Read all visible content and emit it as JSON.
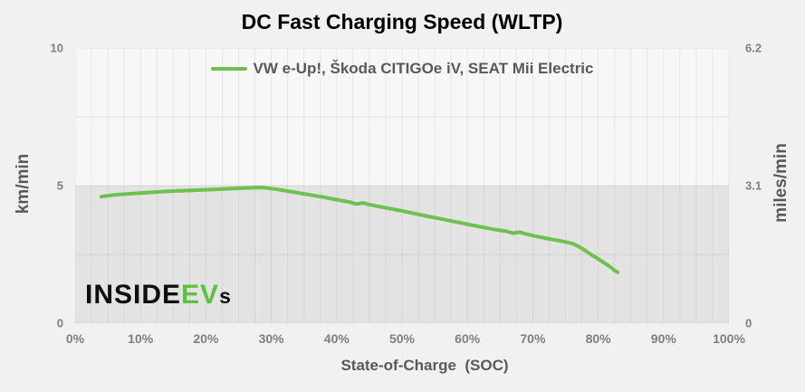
{
  "colors": {
    "series_green": "#6ec04f",
    "logo_green": "#5cc23c",
    "band_gray": "#e3e3e3",
    "tick_gray": "#7f7f7f",
    "label_gray": "#595959"
  },
  "watermark": {
    "part1": "INSIDE",
    "part2": "EV",
    "part3": "s"
  },
  "chart_data": {
    "type": "line",
    "title": "DC Fast Charging Speed (WLTP)",
    "xlabel": "State-of-Charge  (SOC)",
    "ylabel_left": "km/min",
    "ylabel_right": "miles/min",
    "xlim": [
      0,
      100
    ],
    "ylim_left": [
      0,
      10
    ],
    "ylim_right": [
      0,
      6.2
    ],
    "grid": "on",
    "x_gridline_step": 2.5,
    "y_gridline_values": [
      0,
      2.5,
      5,
      7.5,
      10
    ],
    "shaded_band": {
      "from": 0,
      "to": 5
    },
    "legend_position": "top-center-inside",
    "x_ticks": [
      {
        "value": 0,
        "label": "0%"
      },
      {
        "value": 10,
        "label": "10%"
      },
      {
        "value": 20,
        "label": "20%"
      },
      {
        "value": 30,
        "label": "30%"
      },
      {
        "value": 40,
        "label": "40%"
      },
      {
        "value": 50,
        "label": "50%"
      },
      {
        "value": 60,
        "label": "60%"
      },
      {
        "value": 70,
        "label": "70%"
      },
      {
        "value": 80,
        "label": "80%"
      },
      {
        "value": 90,
        "label": "90%"
      },
      {
        "value": 100,
        "label": "100%"
      }
    ],
    "y_ticks_left": [
      {
        "value": 10,
        "label": "10"
      },
      {
        "value": 5,
        "label": "5"
      },
      {
        "value": 0,
        "label": "0"
      }
    ],
    "y_ticks_right": [
      {
        "value": 10,
        "label": "6.2"
      },
      {
        "value": 5,
        "label": "3.1"
      },
      {
        "value": 0,
        "label": "0"
      }
    ],
    "series": [
      {
        "name": "VW e-Up!, Škoda CITIGOe iV, SEAT Mii Electric",
        "color": "#6ec04f",
        "units": "km/min vs SOC %",
        "points": [
          [
            4,
            4.6
          ],
          [
            5,
            4.63
          ],
          [
            6,
            4.66
          ],
          [
            8,
            4.7
          ],
          [
            10,
            4.73
          ],
          [
            12,
            4.76
          ],
          [
            14,
            4.79
          ],
          [
            16,
            4.81
          ],
          [
            18,
            4.83
          ],
          [
            20,
            4.85
          ],
          [
            22,
            4.87
          ],
          [
            24,
            4.89
          ],
          [
            26,
            4.91
          ],
          [
            28,
            4.93
          ],
          [
            29,
            4.92
          ],
          [
            30,
            4.89
          ],
          [
            31,
            4.86
          ],
          [
            32,
            4.82
          ],
          [
            34,
            4.74
          ],
          [
            36,
            4.66
          ],
          [
            38,
            4.58
          ],
          [
            40,
            4.49
          ],
          [
            42,
            4.4
          ],
          [
            43,
            4.33
          ],
          [
            44,
            4.37
          ],
          [
            45,
            4.31
          ],
          [
            46,
            4.26
          ],
          [
            48,
            4.17
          ],
          [
            50,
            4.08
          ],
          [
            52,
            3.98
          ],
          [
            54,
            3.88
          ],
          [
            56,
            3.79
          ],
          [
            58,
            3.69
          ],
          [
            60,
            3.6
          ],
          [
            62,
            3.5
          ],
          [
            64,
            3.41
          ],
          [
            66,
            3.34
          ],
          [
            67,
            3.27
          ],
          [
            68,
            3.31
          ],
          [
            69,
            3.24
          ],
          [
            70,
            3.18
          ],
          [
            72,
            3.09
          ],
          [
            74,
            3.0
          ],
          [
            76,
            2.9
          ],
          [
            77,
            2.79
          ],
          [
            78,
            2.64
          ],
          [
            79,
            2.48
          ],
          [
            80,
            2.34
          ],
          [
            81,
            2.18
          ],
          [
            82,
            2.02
          ],
          [
            82.5,
            1.92
          ],
          [
            83,
            1.85
          ]
        ]
      }
    ]
  }
}
